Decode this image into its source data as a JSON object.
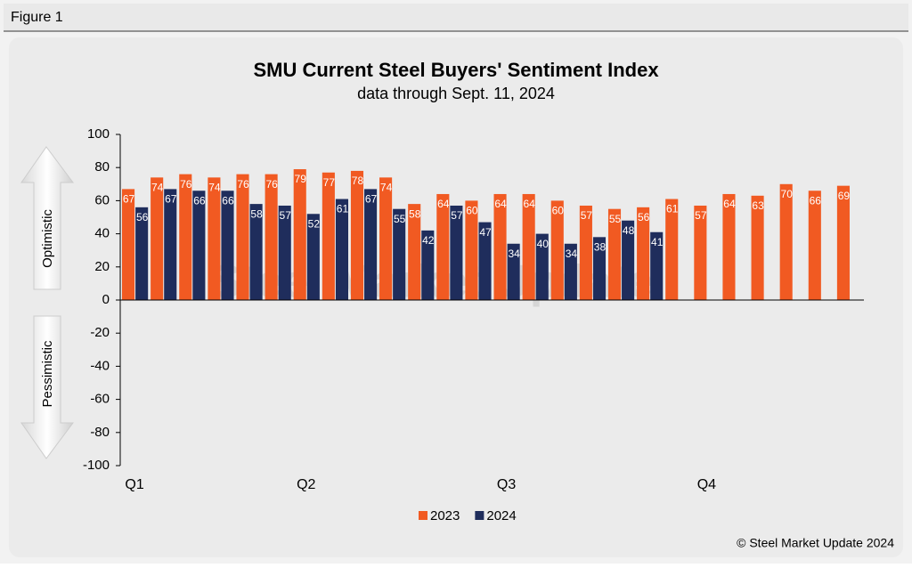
{
  "figure_label": "Figure 1",
  "chart_data": {
    "type": "bar",
    "title": "SMU Current Steel Buyers' Sentiment Index",
    "subtitle": "data through Sept. 11, 2024",
    "categories": [
      "Q1",
      null,
      null,
      null,
      null,
      null,
      "Q2",
      null,
      null,
      null,
      null,
      null,
      null,
      "Q3",
      null,
      null,
      null,
      null,
      null,
      null,
      "Q4",
      null,
      null,
      null,
      null,
      null
    ],
    "series": [
      {
        "name": "2023",
        "color": "#f15a22",
        "values": [
          67,
          74,
          76,
          74,
          76,
          76,
          79,
          77,
          78,
          74,
          58,
          64,
          60,
          64,
          64,
          60,
          57,
          55,
          56,
          61,
          57,
          64,
          63,
          70,
          66,
          69
        ]
      },
      {
        "name": "2024",
        "color": "#1f2d5c",
        "values": [
          56,
          67,
          66,
          66,
          58,
          57,
          52,
          61,
          67,
          55,
          42,
          57,
          47,
          34,
          40,
          34,
          38,
          48,
          41,
          null,
          null,
          null,
          null,
          null,
          null,
          null
        ]
      }
    ],
    "ylim": [
      -100,
      100
    ],
    "yticks": [
      -100,
      -80,
      -60,
      -40,
      -20,
      0,
      20,
      40,
      60,
      80,
      100
    ],
    "annotations": [
      "Optimistic",
      "Pessimistic"
    ],
    "watermark": "Steel Market Update",
    "legend": "bottom"
  },
  "footer": "© Steel Market Update 2024"
}
